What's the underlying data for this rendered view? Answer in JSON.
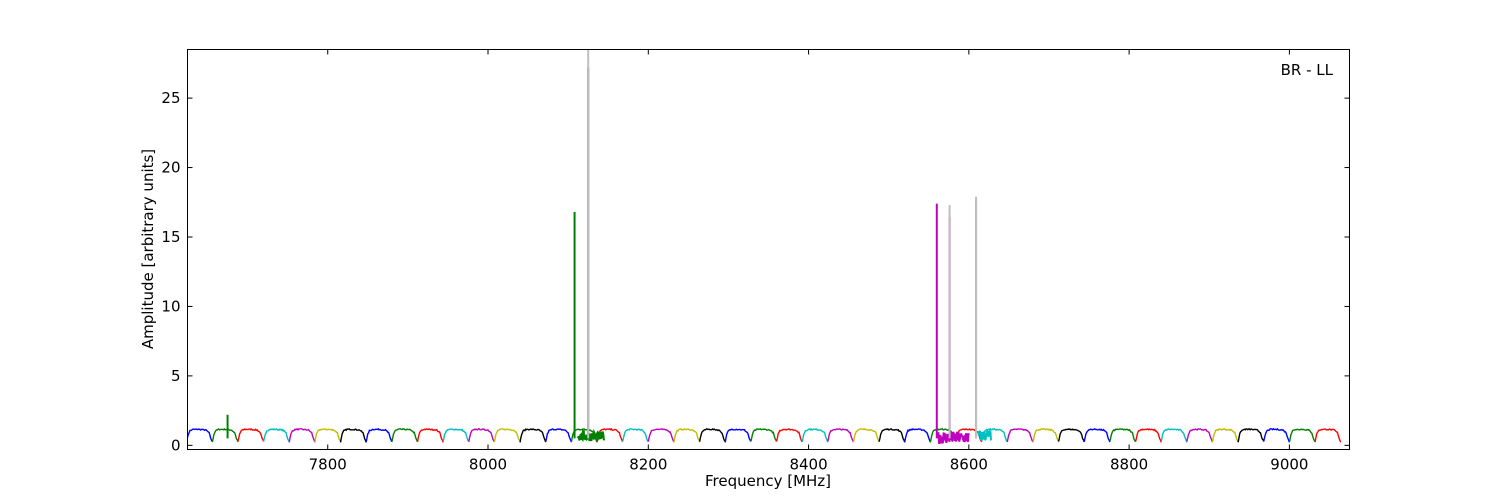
{
  "chart_data": {
    "type": "line",
    "title": "",
    "annotation": "BR - LL",
    "xlabel": "Frequency [MHz]",
    "ylabel": "Amplitude [arbitrary units]",
    "xlim": [
      7625,
      9075
    ],
    "ylim": [
      -0.3,
      28.5
    ],
    "xticks": [
      7800,
      8000,
      8200,
      8400,
      8600,
      8800,
      9000
    ],
    "yticks": [
      0,
      5,
      10,
      15,
      20,
      25
    ],
    "grid": false,
    "legend": "none",
    "channel_width_mhz": 32,
    "channel_start_mhz": 7624,
    "channel_count": 45,
    "baseline": {
      "channel_pattern": [
        {
          "offset": 0,
          "value": 0.25
        },
        {
          "offset": 2,
          "value": 0.8
        },
        {
          "offset": 4,
          "value": 1.05
        },
        {
          "offset": 8,
          "value": 1.15
        },
        {
          "offset": 16,
          "value": 1.15
        },
        {
          "offset": 24,
          "value": 1.1
        },
        {
          "offset": 28,
          "value": 0.9
        },
        {
          "offset": 30,
          "value": 0.5
        },
        {
          "offset": 32,
          "value": 0.25
        }
      ]
    },
    "series_colors": [
      "#0000ff",
      "#008000",
      "#ff0000",
      "#00bfbf",
      "#bf00bf",
      "#bfbf00",
      "#000000"
    ],
    "color_cycle_start_index": 0,
    "spikes": [
      {
        "x": 7675,
        "y": 2.2,
        "color": "#008000"
      },
      {
        "x": 8108,
        "y": 16.8,
        "color": "#008000"
      },
      {
        "x": 8125,
        "y": 27.2,
        "color": "#008000"
      },
      {
        "x": 8125,
        "y": 28.5,
        "color": "#bfbfbf"
      },
      {
        "x": 8560,
        "y": 17.4,
        "color": "#bf00bf"
      },
      {
        "x": 8576,
        "y": 16.4,
        "color": "#bf00bf"
      },
      {
        "x": 8576,
        "y": 17.3,
        "color": "#bfbfbf"
      },
      {
        "x": 8609,
        "y": 17.7,
        "color": "#00bfbf"
      },
      {
        "x": 8609,
        "y": 17.9,
        "color": "#bfbfbf"
      }
    ],
    "noisy_regions": [
      {
        "x0": 8112,
        "x1": 8145,
        "color": "#008000",
        "low": 0.3,
        "high": 1.0
      },
      {
        "x0": 8562,
        "x1": 8600,
        "color": "#bf00bf",
        "low": 0.1,
        "high": 1.0
      },
      {
        "x0": 8612,
        "x1": 8628,
        "color": "#00bfbf",
        "low": 0.3,
        "high": 1.1
      }
    ]
  }
}
